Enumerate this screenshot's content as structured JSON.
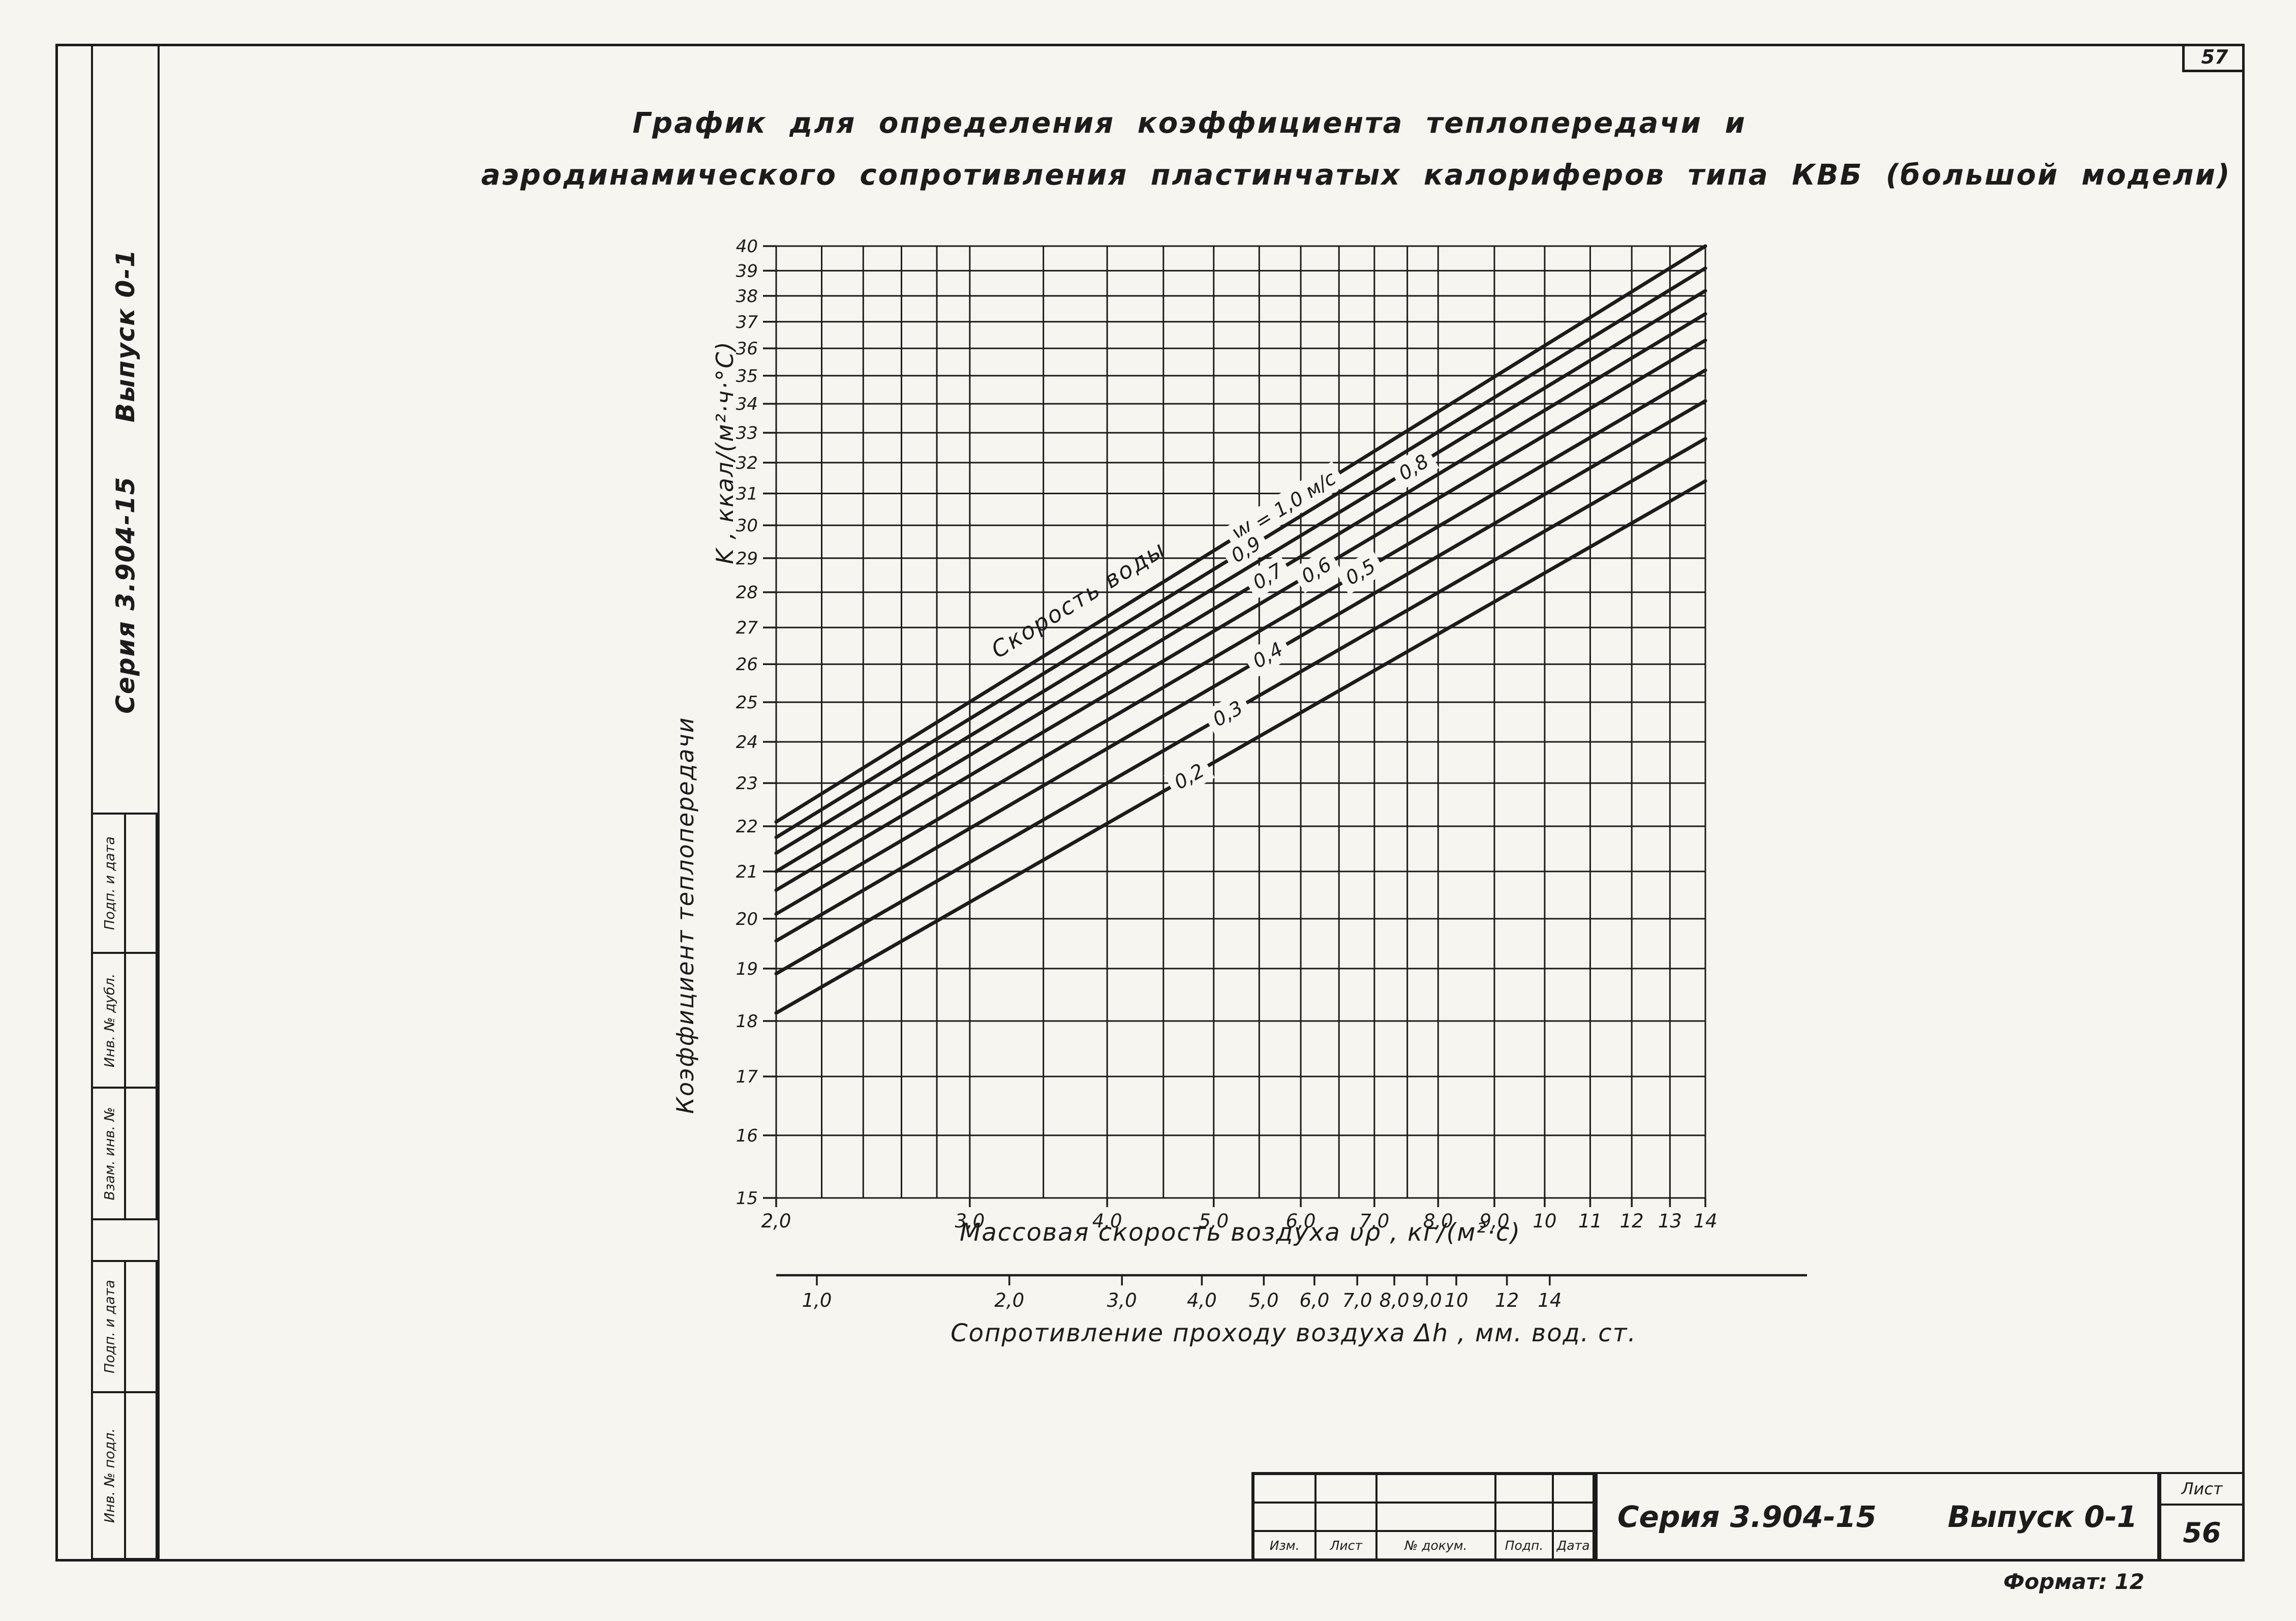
{
  "page": {
    "sheet_number_top": "57",
    "format_note": "Формат: 12",
    "colors": {
      "paper": "#f6f5f0",
      "ink": "#1c1c1c"
    }
  },
  "left_margin": {
    "issue_vertical": "Выпуск 0-1",
    "series_vertical": "Серия 3.904-15",
    "stamp_boxes": [
      "Подп. и дата",
      "Инв. № дубл.",
      "Взам. инв. №",
      "Подп. и дата",
      "Инв. № подл."
    ]
  },
  "title": {
    "line1": "График для определения коэффициента теплопередачи и",
    "line2": "аэродинамического сопротивления пластинчатых калориферов типа КВБ (большой модели)"
  },
  "chart_data": {
    "type": "line",
    "x_scale": "log",
    "y_scale": "log",
    "xlim": [
      2.0,
      14.0
    ],
    "ylim": [
      15,
      40
    ],
    "grid": true,
    "ink_color": "#1c1c1c",
    "title": "График для определения коэффициента теплопередачи и аэродинамического сопротивления пластинчатых калориферов типа КВБ (большой модели)",
    "xlabel": "Массовая  скорость  воздуха  υρ ,  кг/(м²·с)",
    "ylabel_part1": "Коэффициент  теплопередачи",
    "ylabel_part2": "K ,  ккал/(м²·ч·°С)",
    "x_ticks": [
      2.0,
      3.0,
      4.0,
      5.0,
      6.0,
      7.0,
      8.0,
      9.0,
      10,
      11,
      12,
      13,
      14
    ],
    "x_tick_labels": [
      "2,0",
      "3,0",
      "4,0",
      "5,0",
      "6,0",
      "7,0",
      "8,0",
      "9,0",
      "10",
      "11",
      "12",
      "13",
      "14"
    ],
    "x_grid_minor": [
      2.2,
      2.4,
      2.6,
      2.8,
      3.5,
      4.5,
      5.5,
      6.5,
      7.5
    ],
    "y_ticks": [
      15,
      16,
      17,
      18,
      19,
      20,
      21,
      22,
      23,
      24,
      25,
      26,
      27,
      28,
      29,
      30,
      31,
      32,
      33,
      34,
      35,
      36,
      37,
      38,
      39,
      40
    ],
    "y_tick_labels": [
      "15",
      "16",
      "17",
      "18",
      "19",
      "20",
      "21",
      "22",
      "23",
      "24",
      "25",
      "26",
      "27",
      "28",
      "29",
      "30",
      "31",
      "32",
      "33",
      "34",
      "35",
      "36",
      "37",
      "38",
      "39",
      "40"
    ],
    "annotation": {
      "text": "Скорость  воды",
      "x": 3.8,
      "y": 27.6
    },
    "series": [
      {
        "water_speed": 1.0,
        "label": "W = 1,0 м/с",
        "label_x": 5.8,
        "x": [
          2.0,
          14.0
        ],
        "y": [
          22.1,
          40.0
        ]
      },
      {
        "water_speed": 0.9,
        "label": "0,9",
        "label_x": 5.35,
        "x": [
          2.0,
          14.0
        ],
        "y": [
          21.75,
          39.1
        ]
      },
      {
        "water_speed": 0.8,
        "label": "0,8",
        "label_x": 7.6,
        "x": [
          2.0,
          14.0
        ],
        "y": [
          21.4,
          38.2
        ]
      },
      {
        "water_speed": 0.7,
        "label": "0,7",
        "label_x": 5.6,
        "x": [
          2.0,
          14.0
        ],
        "y": [
          21.0,
          37.3
        ]
      },
      {
        "water_speed": 0.6,
        "label": "0,6",
        "label_x": 6.2,
        "x": [
          2.0,
          14.0
        ],
        "y": [
          20.6,
          36.3
        ]
      },
      {
        "water_speed": 0.5,
        "label": "0,5",
        "label_x": 6.8,
        "x": [
          2.0,
          14.0
        ],
        "y": [
          20.1,
          35.2
        ]
      },
      {
        "water_speed": 0.4,
        "label": "0,4",
        "label_x": 5.6,
        "x": [
          2.0,
          14.0
        ],
        "y": [
          19.55,
          34.1
        ]
      },
      {
        "water_speed": 0.3,
        "label": "0,3",
        "label_x": 5.15,
        "x": [
          2.0,
          14.0
        ],
        "y": [
          18.9,
          32.8
        ]
      },
      {
        "water_speed": 0.2,
        "label": "0,2",
        "label_x": 4.75,
        "x": [
          2.0,
          14.0
        ],
        "y": [
          18.15,
          31.4
        ]
      }
    ],
    "secondary_axis": {
      "title": "Сопротивление  проходу  воздуха Δh ,  мм. вод. ст.",
      "scale": "log",
      "ticks": [
        1.0,
        2.0,
        3.0,
        4.0,
        5.0,
        6.0,
        7.0,
        8.0,
        9.0,
        10,
        12,
        14
      ],
      "tick_labels": [
        "1,0",
        "2,0",
        "3,0",
        "4,0",
        "5,0",
        "6,0",
        "7,0",
        "8,0",
        "9,0",
        "10",
        "12",
        "14"
      ]
    },
    "legend_position": "on-lines"
  },
  "title_block": {
    "columns": [
      "Изм.",
      "Лист",
      "№ докум.",
      "Подп.",
      "Дата"
    ],
    "series": "Серия 3.904-15",
    "issue": "Выпуск 0-1",
    "sheet_label": "Лист",
    "sheet_number": "56"
  }
}
